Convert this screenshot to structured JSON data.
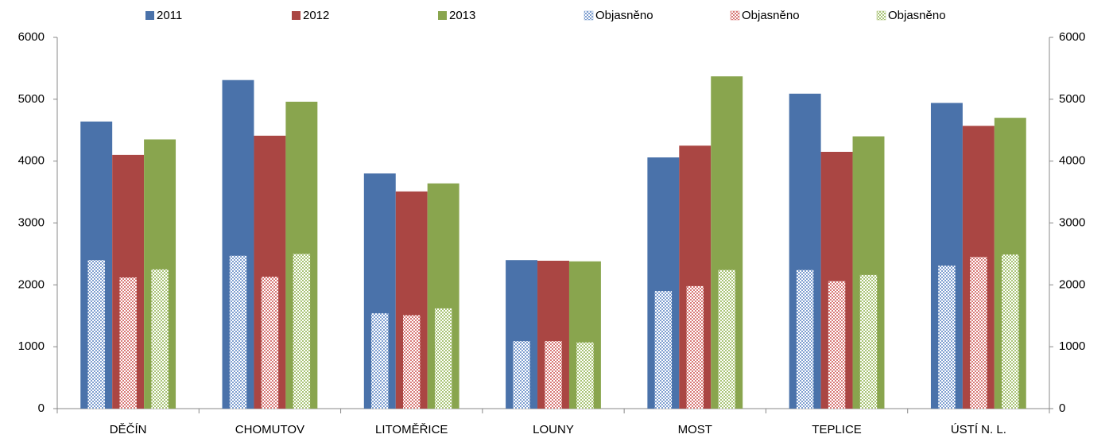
{
  "chart_data": {
    "type": "bar",
    "categories": [
      "DĚČÍN",
      "CHOMUTOV",
      "LITOMĚŘICE",
      "LOUNY",
      "MOST",
      "TEPLICE",
      "ÚSTÍ N. L."
    ],
    "series": [
      {
        "name": "2011",
        "color": "#4a72aa",
        "values": [
          4640,
          5310,
          3800,
          2400,
          4060,
          5090,
          4940
        ]
      },
      {
        "name": "2012",
        "color": "#aa4643",
        "values": [
          4100,
          4410,
          3510,
          2390,
          4250,
          4150,
          4570
        ]
      },
      {
        "name": "2013",
        "color": "#89a54e",
        "values": [
          4350,
          4960,
          3640,
          2380,
          5370,
          4400,
          4700
        ]
      },
      {
        "name": "Objasněno",
        "color": "#7f9fd0",
        "pattern": "checker",
        "axis": "y2",
        "values": [
          2400,
          2470,
          1540,
          1090,
          1900,
          2240,
          2310
        ]
      },
      {
        "name": "Objasněno",
        "color": "#d87a78",
        "pattern": "checker",
        "axis": "y2",
        "values": [
          2120,
          2130,
          1510,
          1090,
          1980,
          2060,
          2450
        ]
      },
      {
        "name": "Objasněno",
        "color": "#a9c476",
        "pattern": "checker",
        "axis": "y2",
        "values": [
          2250,
          2500,
          1620,
          1070,
          2240,
          2160,
          2490
        ]
      }
    ],
    "ylim": [
      0,
      6000
    ],
    "yticks": [
      0,
      1000,
      2000,
      3000,
      4000,
      5000,
      6000
    ],
    "y2lim": [
      0,
      6000
    ],
    "y2ticks": [
      0,
      1000,
      2000,
      3000,
      4000,
      5000,
      6000
    ],
    "grid": false,
    "legend": "top"
  }
}
